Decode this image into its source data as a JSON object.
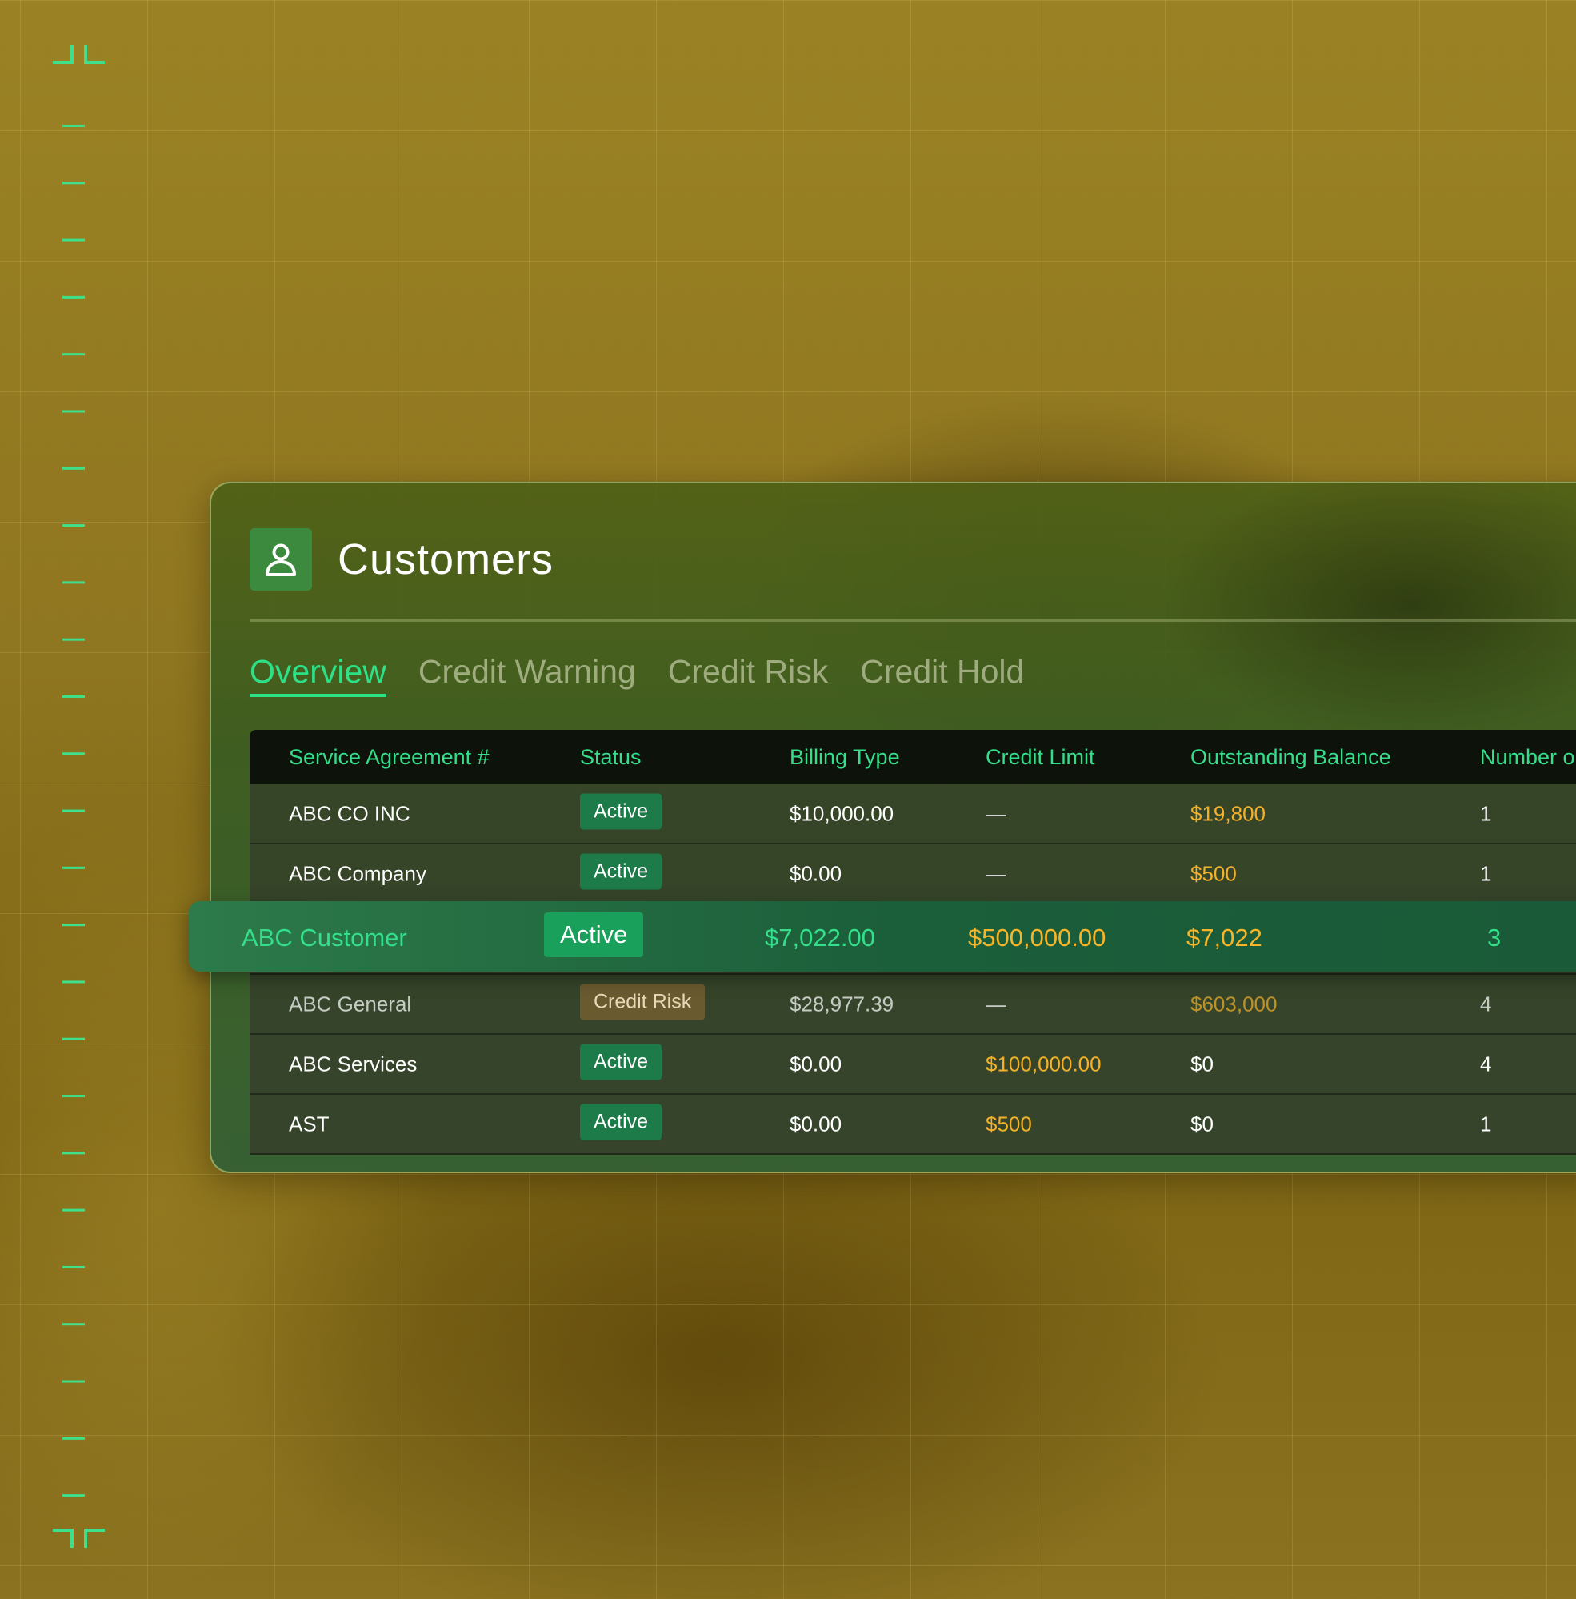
{
  "page": {
    "title": "Customers",
    "tabs": [
      {
        "label": "Overview",
        "active": true
      },
      {
        "label": "Credit Warning",
        "active": false
      },
      {
        "label": "Credit Risk",
        "active": false
      },
      {
        "label": "Credit Hold",
        "active": false
      }
    ]
  },
  "table": {
    "columns": [
      "Service Agreement #",
      "Status",
      "Billing Type",
      "Credit Limit",
      "Outstanding Balance",
      "Number o"
    ],
    "rows": [
      {
        "name": "ABC CO INC",
        "status": "Active",
        "billing": "$10,000.00",
        "credit_limit": "—",
        "balance": "$19,800",
        "number": "1"
      },
      {
        "name": "ABC Company",
        "status": "Active",
        "billing": "$0.00",
        "credit_limit": "—",
        "balance": "$500",
        "number": "1"
      },
      {
        "name": "ABC Customer",
        "status": "Active",
        "billing": "$7,022.00",
        "credit_limit": "$500,000.00",
        "balance": "$7,022",
        "number": "3"
      },
      {
        "name": "ABC General",
        "status": "Credit Risk",
        "billing": "$28,977.39",
        "credit_limit": "—",
        "balance": "$603,000",
        "number": "4"
      },
      {
        "name": "ABC Services",
        "status": "Active",
        "billing": "$0.00",
        "credit_limit": "$100,000.00",
        "balance": "$0",
        "number": "4"
      },
      {
        "name": "AST",
        "status": "Active",
        "billing": "$0.00",
        "credit_limit": "$500",
        "balance": "$0",
        "number": "1"
      }
    ]
  },
  "colors": {
    "accent_green": "#2ee088",
    "amber": "#f2b129",
    "active_badge": "#1d7a49",
    "risk_badge": "#6a5a30"
  },
  "icons": {
    "header": "user-icon"
  }
}
